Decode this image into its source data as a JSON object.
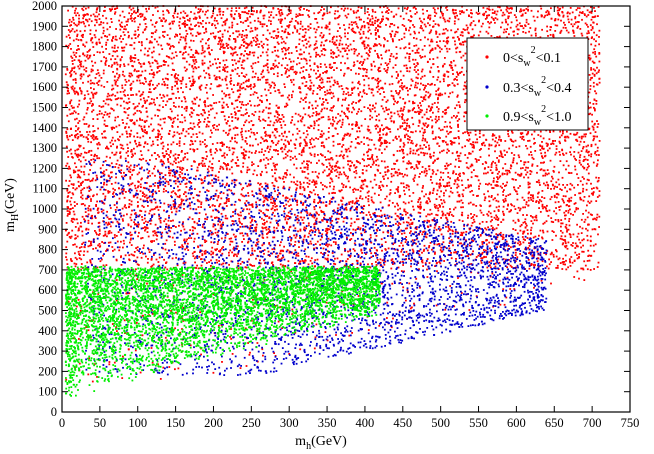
{
  "chart_data": {
    "type": "scatter",
    "title": "",
    "xlabel": {
      "main": "m",
      "sub": "h",
      "unit": "(GeV)"
    },
    "ylabel": {
      "main": "m",
      "sub": "H",
      "unit": "(GeV)"
    },
    "xlim": [
      0,
      750
    ],
    "ylim": [
      0,
      2000
    ],
    "x_ticks": [
      0,
      50,
      100,
      150,
      200,
      250,
      300,
      350,
      400,
      450,
      500,
      550,
      600,
      650,
      700,
      750
    ],
    "y_ticks": [
      0,
      100,
      200,
      300,
      400,
      500,
      600,
      700,
      800,
      900,
      1000,
      1100,
      1200,
      1300,
      1400,
      1500,
      1600,
      1700,
      1800,
      1900,
      2000
    ],
    "grid": false,
    "legend_position": "top-right",
    "series": [
      {
        "label": {
          "pre": "0<s",
          "sub": "w",
          "sup": "2",
          "post": "<0.1"
        },
        "color": "#ff0000",
        "region": {
          "x_range": [
            5,
            710
          ],
          "y_upper": 2000,
          "y_lower_points": [
            [
              0,
              0
            ],
            [
              700,
              700
            ],
            [
              710,
              700
            ]
          ],
          "density_note": "dense upper region, sparse at low mass"
        },
        "sample_points": [
          [
            100,
            1950
          ],
          [
            200,
            1800
          ],
          [
            300,
            1600
          ],
          [
            400,
            1400
          ],
          [
            500,
            1200
          ],
          [
            600,
            1000
          ],
          [
            650,
            900
          ],
          [
            700,
            750
          ],
          [
            150,
            1300
          ],
          [
            350,
            1000
          ],
          [
            450,
            1700
          ],
          [
            550,
            1500
          ]
        ]
      },
      {
        "label": {
          "pre": "0.3<s",
          "sub": "w",
          "sup": "2",
          "post": "<0.4"
        },
        "color": "#0000cc",
        "region": {
          "x_range": [
            30,
            640
          ],
          "y_range": [
            180,
            1250
          ],
          "core": [
            [
              120,
              1100
            ],
            [
              350,
              1050
            ],
            [
              600,
              850
            ],
            [
              640,
              750
            ]
          ]
        },
        "sample_points": [
          [
            150,
            1100
          ],
          [
            250,
            1000
          ],
          [
            350,
            950
          ],
          [
            450,
            900
          ],
          [
            550,
            850
          ],
          [
            620,
            780
          ],
          [
            200,
            600
          ],
          [
            300,
            500
          ],
          [
            400,
            650
          ]
        ]
      },
      {
        "label": {
          "pre": "0.9<s",
          "sub": "w",
          "sup": "2",
          "post": "<1.0"
        },
        "color": "#00ee00",
        "region": {
          "x_range": [
            5,
            420
          ],
          "y_range": [
            20,
            730
          ],
          "band_top": 720
        },
        "sample_points": [
          [
            20,
            650
          ],
          [
            50,
            500
          ],
          [
            100,
            600
          ],
          [
            150,
            550
          ],
          [
            200,
            650
          ],
          [
            250,
            600
          ],
          [
            300,
            680
          ],
          [
            350,
            700
          ],
          [
            400,
            710
          ],
          [
            80,
            300
          ],
          [
            40,
            200
          ]
        ]
      }
    ]
  }
}
